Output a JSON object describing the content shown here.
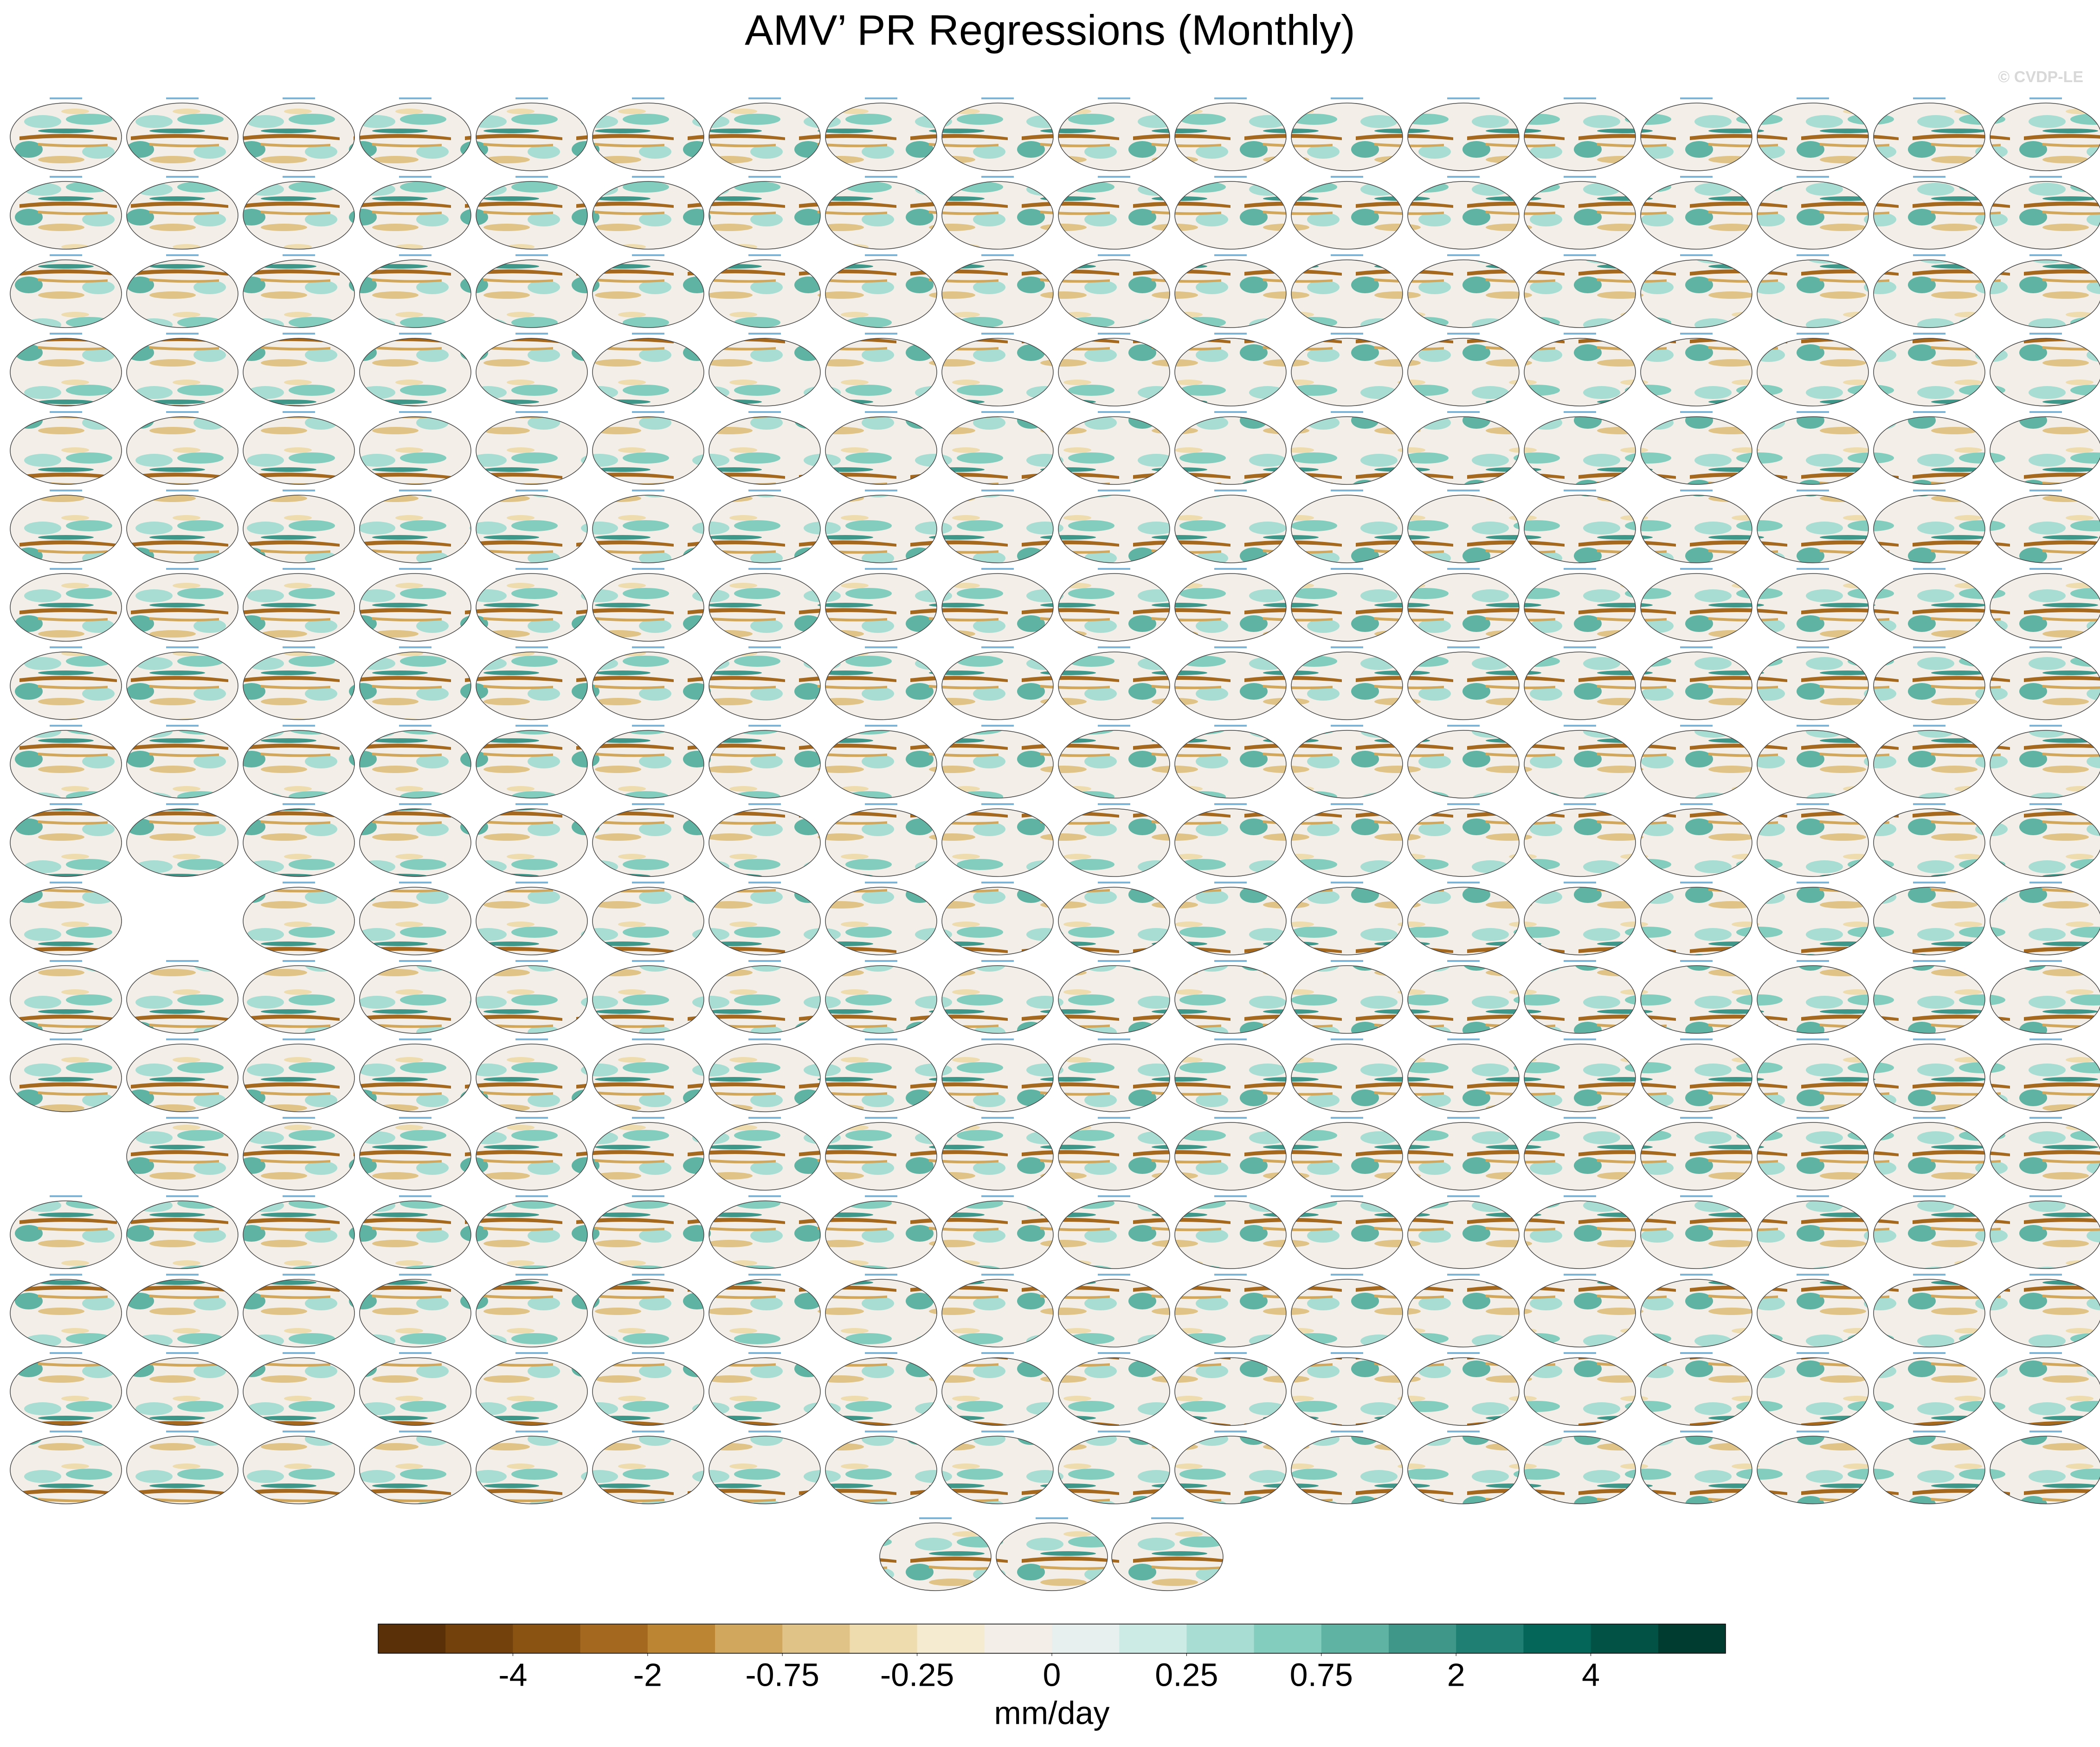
{
  "title": "AMV’ PR Regressions (Monthly)",
  "watermark": "© CVDP-LE",
  "colorbar": {
    "colors": [
      "#5a3008",
      "#73420c",
      "#8a5312",
      "#a4691f",
      "#bb8533",
      "#d1a75e",
      "#e0c387",
      "#eedcae",
      "#f4ebd0",
      "#f3efe8",
      "#e8f0ef",
      "#cdebe5",
      "#a8ddd3",
      "#82cdbd",
      "#5eb3a3",
      "#3f978a",
      "#1e7f72",
      "#046659",
      "#025345",
      "#013c30"
    ],
    "ticks": [
      -4,
      -2,
      -0.75,
      -0.25,
      0,
      0.25,
      0.75,
      2,
      4
    ],
    "units": "mm/day"
  }
}
